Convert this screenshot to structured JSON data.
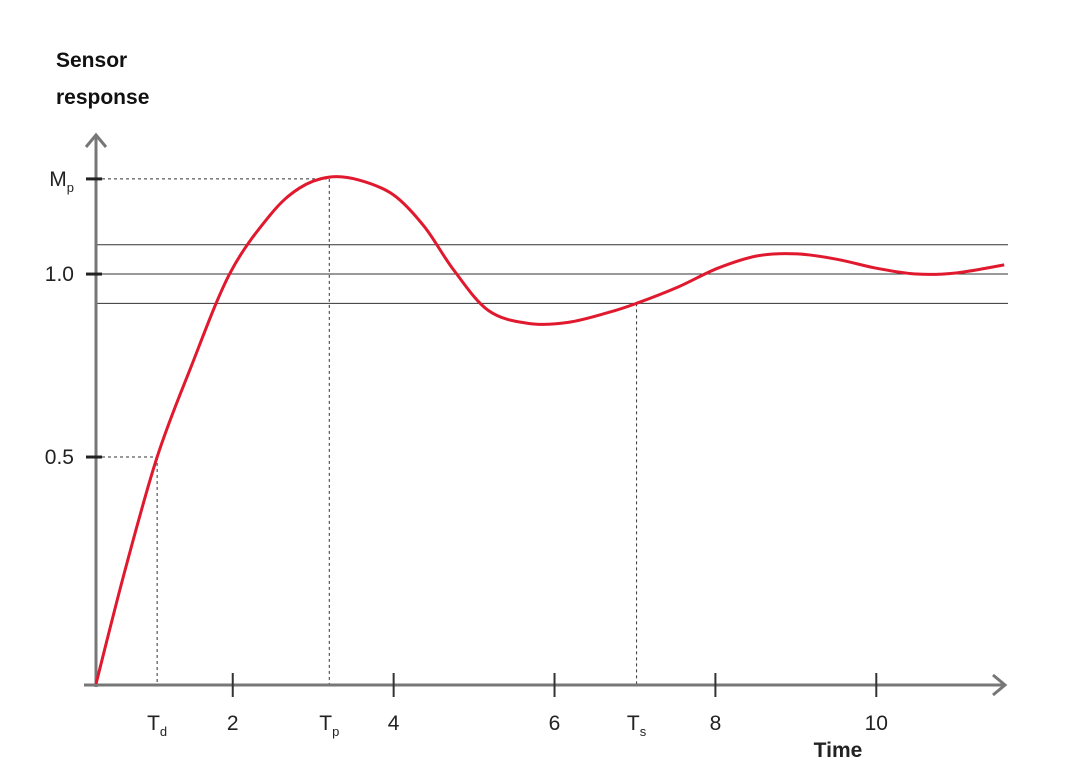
{
  "chart_data": {
    "type": "line",
    "y_label": "Sensor response",
    "x_label": "Time",
    "x": [
      0.3,
      0.66,
      1.06,
      1.47,
      1.96,
      2.46,
      2.83,
      3.2,
      3.57,
      4.0,
      4.38,
      4.75,
      5.18,
      5.68,
      6.17,
      6.67,
      7.02,
      7.54,
      8.03,
      8.53,
      9.02,
      9.52,
      10.0,
      10.5,
      10.99,
      11.59
    ],
    "values": [
      -0.12,
      0.19,
      0.5,
      0.74,
      1.0,
      1.16,
      1.235,
      1.265,
      1.257,
      1.216,
      1.13,
      1.01,
      0.9,
      0.865,
      0.868,
      0.895,
      0.92,
      0.965,
      1.016,
      1.05,
      1.055,
      1.04,
      1.016,
      1.0,
      1.003,
      1.025
    ],
    "color": "#e0192e",
    "xlim": [
      0.3,
      11.6
    ],
    "ylim": [
      -0.123,
      1.38
    ],
    "xticks": [
      {
        "value": 1.06,
        "label": "T",
        "sub": "d"
      },
      2,
      {
        "value": 3.2,
        "label": "T",
        "sub": "p"
      },
      4,
      6,
      {
        "value": 7.02,
        "label": "T",
        "sub": "s"
      },
      8,
      10
    ],
    "yticks": [
      0.5,
      {
        "value": 1,
        "label": "1.0"
      },
      {
        "value": 1.26,
        "label": "M",
        "sub": "p"
      }
    ],
    "hlines": [
      1.08,
      1,
      0.92
    ],
    "guides": [
      {
        "x": 1.06,
        "y": 0.5
      },
      {
        "x": 3.2,
        "y": 1.26
      },
      {
        "x": 7.02,
        "y": 0.92
      }
    ]
  }
}
